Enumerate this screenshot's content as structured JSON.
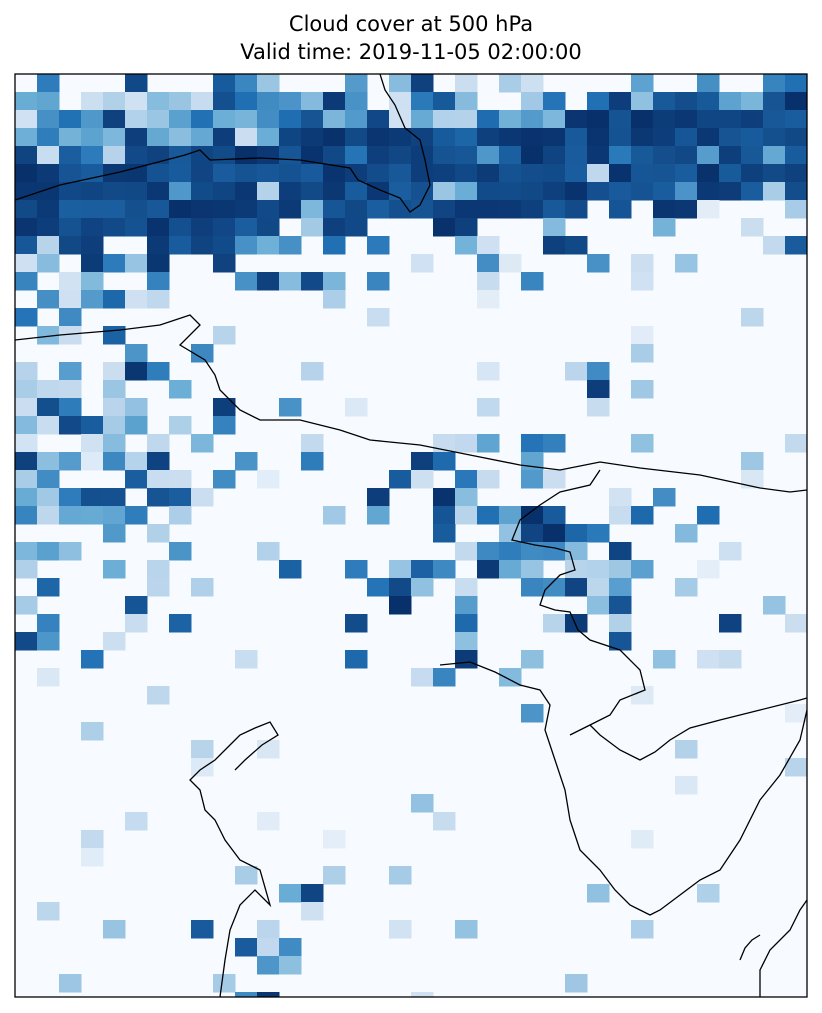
{
  "title": {
    "line1": "Cloud cover at 500 hPa",
    "line2": "Valid time: 2019-11-05 02:00:00"
  },
  "map": {
    "variable": "Cloud cover",
    "pressure_level": "500 hPa",
    "valid_time": "2019-11-05 02:00:00",
    "colormap": "Blues",
    "color_range": [
      "#f7fbff",
      "#08306b"
    ],
    "coastline_color": "#000000",
    "frame_color": "#000000"
  }
}
